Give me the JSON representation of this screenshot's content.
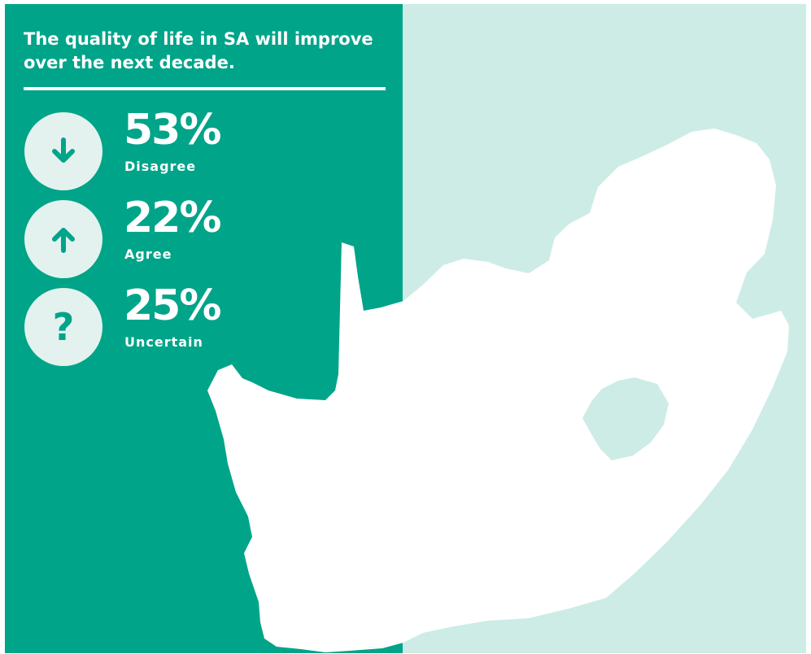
{
  "headline": "The quality of life in SA will improve over the next decade.",
  "colors": {
    "left_panel": "#00a489",
    "right_panel": "#cdece6",
    "map_fill": "#ffffff",
    "icon_circle": "#e3f2ee",
    "icon_glyph": "#00a489"
  },
  "stats": [
    {
      "value": "53%",
      "label": "Disagree",
      "icon": "arrow-down-icon"
    },
    {
      "value": "22%",
      "label": "Agree",
      "icon": "arrow-up-icon"
    },
    {
      "value": "25%",
      "label": "Uncertain",
      "icon": "question-mark-icon",
      "glyph": "?"
    }
  ]
}
